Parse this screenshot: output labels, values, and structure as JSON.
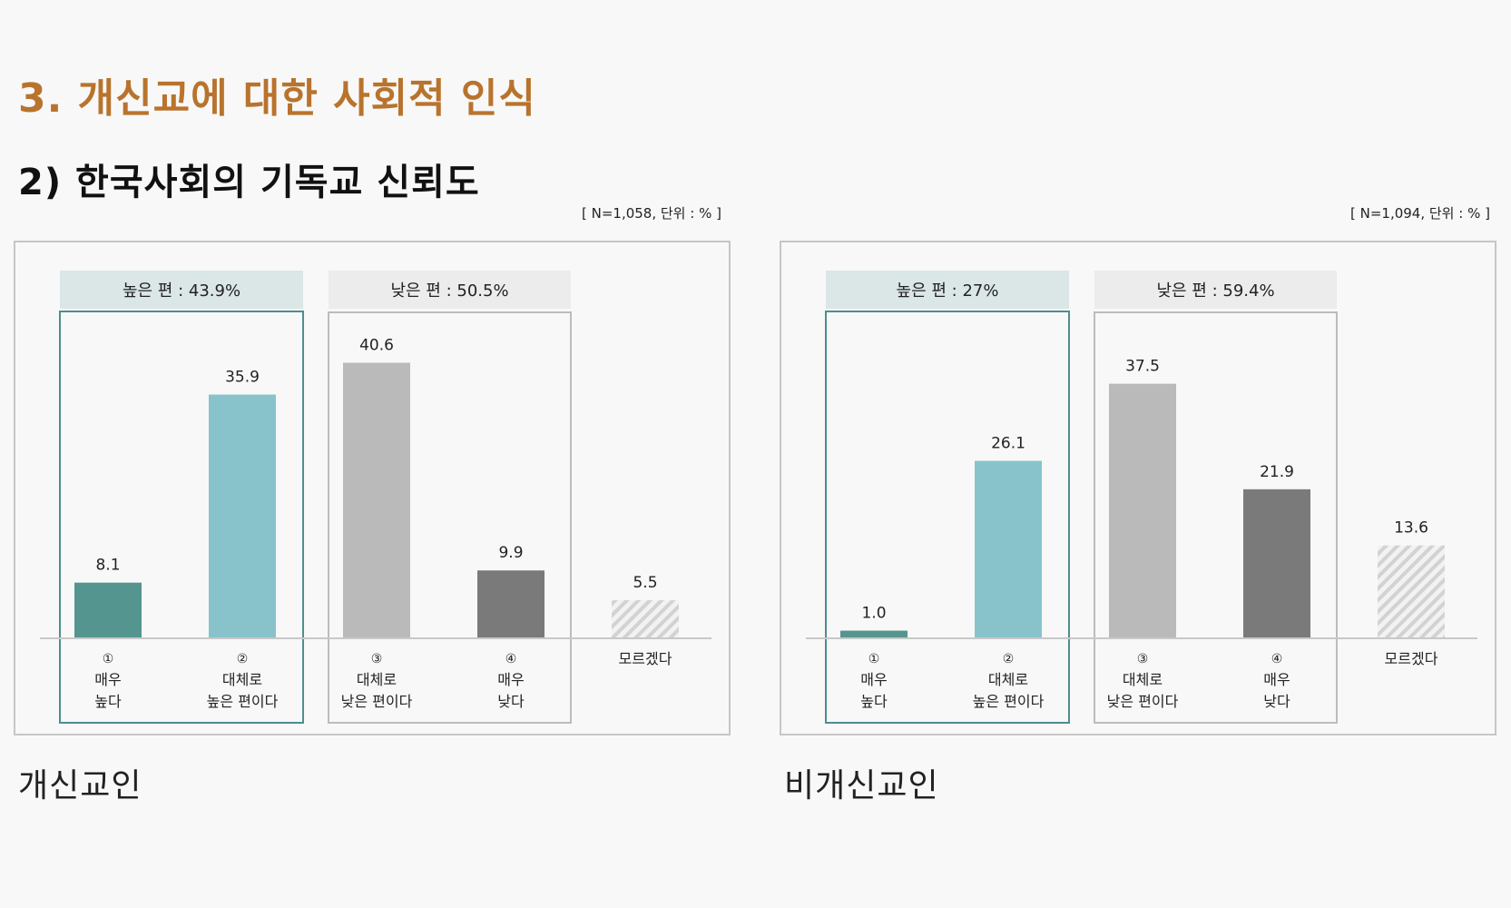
{
  "section_title": "3. 개신교에 대한 사회적 인식",
  "sub_title": "2) 한국사회의 기독교 신뢰도",
  "colors": {
    "very_high": "#55958f",
    "somewhat_high": "#88c3cc",
    "somewhat_low": "#bababa",
    "very_low": "#7a7a7a",
    "dont_know_stripe": "#d2d2d2",
    "high_group_border": "#4e8e8f",
    "high_group_header": "#dbe6e6",
    "low_group_border": "#bcbcbc",
    "low_group_header": "#ececec",
    "panel_border": "#c6c6c6",
    "axis": "#c8c8c8"
  },
  "chart_data": [
    {
      "type": "bar",
      "group_label": "개신교인",
      "sample_note": "[ N=1,058, 단위 : % ]",
      "categories": [
        {
          "num": "①",
          "lines": [
            "매우",
            "높다"
          ]
        },
        {
          "num": "②",
          "lines": [
            "대체로",
            "높은 편이다"
          ]
        },
        {
          "num": "③",
          "lines": [
            "대체로",
            "낮은 편이다"
          ]
        },
        {
          "num": "④",
          "lines": [
            "매우",
            "낮다"
          ]
        },
        {
          "num": "",
          "lines": [
            "모르겠다"
          ]
        }
      ],
      "values": [
        8.1,
        35.9,
        40.6,
        9.9,
        5.5
      ],
      "value_labels": [
        "8.1",
        "35.9",
        "40.6",
        "9.9",
        "5.5"
      ],
      "high_group_label": "높은 편 : 43.9%",
      "low_group_label": "낮은 편 : 50.5%",
      "ylim": [
        0,
        45
      ]
    },
    {
      "type": "bar",
      "group_label": "비개신교인",
      "sample_note": "[ N=1,094, 단위 : % ]",
      "categories": [
        {
          "num": "①",
          "lines": [
            "매우",
            "높다"
          ]
        },
        {
          "num": "②",
          "lines": [
            "대체로",
            "높은 편이다"
          ]
        },
        {
          "num": "③",
          "lines": [
            "대체로",
            "낮은 편이다"
          ]
        },
        {
          "num": "④",
          "lines": [
            "매우",
            "낮다"
          ]
        },
        {
          "num": "",
          "lines": [
            "모르겠다"
          ]
        }
      ],
      "values": [
        1.0,
        26.1,
        37.5,
        21.9,
        13.6
      ],
      "value_labels": [
        "1.0",
        "26.1",
        "37.5",
        "21.9",
        "13.6"
      ],
      "high_group_label": "높은 편 : 27%",
      "low_group_label": "낮은 편 : 59.4%",
      "ylim": [
        0,
        45
      ]
    }
  ]
}
